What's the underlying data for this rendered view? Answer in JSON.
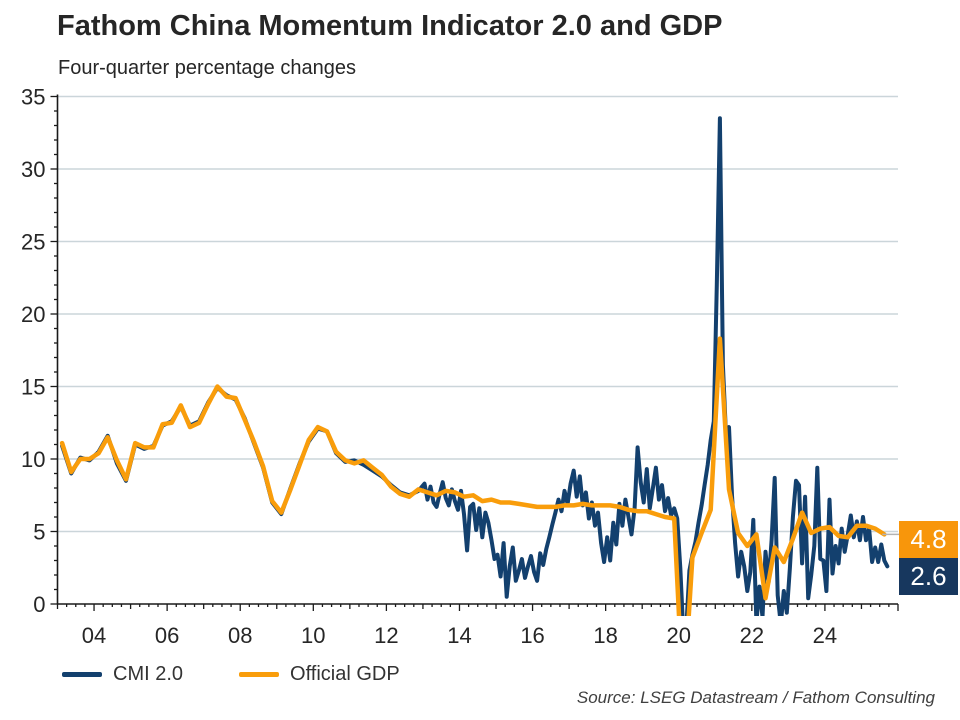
{
  "header": {
    "title": "Fathom China Momentum Indicator 2.0 and GDP",
    "subtitle": "Four-quarter percentage changes"
  },
  "source": "Source: LSEG Datastream / Fathom Consulting",
  "legend": [
    {
      "label": "CMI 2.0",
      "color": "#13406E"
    },
    {
      "label": "Official GDP",
      "color": "#F99D0B"
    }
  ],
  "annotations": {
    "gdp_latest": "4.8",
    "cmi_latest": "2.6"
  },
  "colors": {
    "cmi_line": "#13406E",
    "gdp_line": "#F99D0B",
    "cmi_badge_bg": "#17375E",
    "gdp_badge_bg": "#F8960B",
    "gridline": "#CBD5DA",
    "axis": "#1A1A1A",
    "connector": "#B3B3B3"
  },
  "chart_data": {
    "type": "line",
    "title": "Fathom China Momentum Indicator 2.0 and GDP",
    "subtitle": "Four-quarter percentage changes",
    "x_axis": {
      "start": 2003,
      "end": 2026,
      "major_tick_years": [
        2004,
        2006,
        2008,
        2010,
        2012,
        2014,
        2016,
        2018,
        2020,
        2022,
        2024
      ],
      "labels": [
        "04",
        "06",
        "08",
        "10",
        "12",
        "14",
        "16",
        "18",
        "20",
        "22",
        "24"
      ],
      "minor_step_years": 0.25
    },
    "y_axis": {
      "min": 0,
      "max": 35,
      "major_ticks": [
        0,
        5,
        10,
        15,
        20,
        25,
        30,
        35
      ],
      "labels": [
        "0",
        "5",
        "10",
        "15",
        "20",
        "25",
        "30",
        "35"
      ],
      "minor_step": 1,
      "grid": true
    },
    "legend_position": "bottom-left",
    "series": [
      {
        "name": "CMI 2.0",
        "data_name": "cmi-line",
        "color": "#13406E",
        "width": 4,
        "quarterly": {
          "start_year": 2003,
          "values": [
            [
              10.9,
              9.0,
              10.1,
              9.9
            ],
            [
              10.5,
              11.6,
              9.7,
              8.5
            ],
            [
              11.0,
              10.7,
              10.9,
              12.3
            ],
            [
              12.6,
              13.6,
              12.3,
              12.6
            ],
            [
              13.9,
              14.9,
              14.4,
              14.1
            ],
            [
              12.8,
              11.1,
              9.4,
              7.0
            ],
            [
              6.2,
              8.0,
              9.7,
              11.2
            ],
            [
              12.1,
              11.9,
              10.4,
              9.8
            ],
            [
              9.9,
              9.6,
              9.2,
              8.8
            ],
            [
              8.2,
              7.7,
              7.5,
              7.8
            ]
          ]
        },
        "monthly": {
          "start_year": 2013,
          "values": [
            [
              8.3,
              7.2,
              8.1,
              7.0,
              6.7,
              7.6,
              8.4,
              7.3,
              6.8,
              7.9,
              7.1,
              6.5
            ],
            [
              7.8,
              6.2,
              3.7,
              6.7,
              6.9,
              5.1,
              6.6,
              4.6,
              6.3,
              5.6,
              4.4,
              3.1
            ],
            [
              3.4,
              1.9,
              4.2,
              0.5,
              2.6,
              3.9,
              1.6,
              2.3,
              3.1,
              1.8,
              2.6,
              3.3
            ],
            [
              2.2,
              1.6,
              3.5,
              2.7,
              3.8,
              4.6,
              5.5,
              6.3,
              7.2,
              6.4,
              7.8,
              6.9
            ],
            [
              8.3,
              9.2,
              7.4,
              8.8,
              6.8,
              7.7,
              5.9,
              7.0,
              5.4,
              6.3,
              4.2,
              2.9
            ],
            [
              4.6,
              3.0,
              5.6,
              4.1,
              6.9,
              5.4,
              7.2,
              6.0,
              4.8,
              6.6,
              10.8,
              8.4
            ],
            [
              7.0,
              9.3,
              6.6,
              8.0,
              9.4,
              7.2,
              8.2,
              6.4,
              7.3,
              6.1,
              6.6,
              5.9
            ],
            [
              2.5,
              -2.0,
              -1.5,
              2.3,
              3.4,
              4.3,
              5.6,
              6.8,
              8.2,
              9.6,
              11.3,
              12.6
            ],
            [
              22.0,
              33.5,
              16.5,
              11.8,
              12.2,
              7.5,
              4.2,
              1.9,
              3.6,
              2.6,
              0.9,
              2.2
            ],
            [
              5.8,
              -1.3,
              1.2,
              -0.9,
              3.6,
              1.5,
              4.4,
              8.7,
              0.6,
              -1.4,
              0.9,
              -0.6
            ],
            [
              2.5,
              6.0,
              8.5,
              8.2,
              2.8,
              7.4,
              0.4,
              2.0,
              4.0,
              9.4,
              3.1,
              3.0
            ],
            [
              0.9,
              7.2,
              2.1,
              4.0,
              2.8,
              5.2,
              3.6,
              4.8,
              6.1,
              4.6,
              5.7,
              4.4
            ],
            [
              6.0,
              4.4,
              5.2,
              2.9,
              3.9,
              2.9,
              4.1,
              3.0,
              2.6
            ]
          ]
        },
        "latest_value": 2.6
      },
      {
        "name": "Official GDP",
        "data_name": "gdp-line",
        "color": "#F99D0B",
        "width": 4.5,
        "quarterly": {
          "start_year": 2003,
          "values": [
            [
              11.1,
              9.1,
              10.0,
              10.0
            ],
            [
              10.4,
              11.5,
              9.9,
              8.6
            ],
            [
              11.1,
              10.8,
              10.8,
              12.4
            ],
            [
              12.5,
              13.7,
              12.2,
              12.5
            ],
            [
              13.8,
              15.0,
              14.3,
              14.2
            ],
            [
              12.7,
              11.2,
              9.5,
              7.1
            ],
            [
              6.3,
              7.9,
              9.6,
              11.3
            ],
            [
              12.2,
              11.9,
              10.5,
              9.9
            ],
            [
              9.7,
              9.9,
              9.4,
              8.9
            ],
            [
              8.1,
              7.6,
              7.4,
              7.9
            ],
            [
              7.7,
              7.5,
              7.8,
              7.7
            ],
            [
              7.4,
              7.5,
              7.1,
              7.2
            ],
            [
              7.0,
              7.0,
              6.9,
              6.8
            ],
            [
              6.7,
              6.7,
              6.7,
              6.8
            ],
            [
              6.8,
              6.9,
              6.8,
              6.8
            ],
            [
              6.8,
              6.7,
              6.5,
              6.4
            ],
            [
              6.4,
              6.2,
              6.0,
              5.9
            ],
            [
              -6.8,
              3.2,
              4.9,
              6.5
            ],
            [
              18.3,
              7.9,
              4.9,
              4.0
            ],
            [
              4.8,
              0.4,
              3.9,
              2.9
            ],
            [
              4.5,
              6.3,
              4.9,
              5.2
            ],
            [
              5.3,
              4.7,
              4.6,
              5.4
            ],
            [
              5.4,
              5.2,
              4.8
            ]
          ]
        },
        "latest_value": 4.8
      }
    ]
  }
}
